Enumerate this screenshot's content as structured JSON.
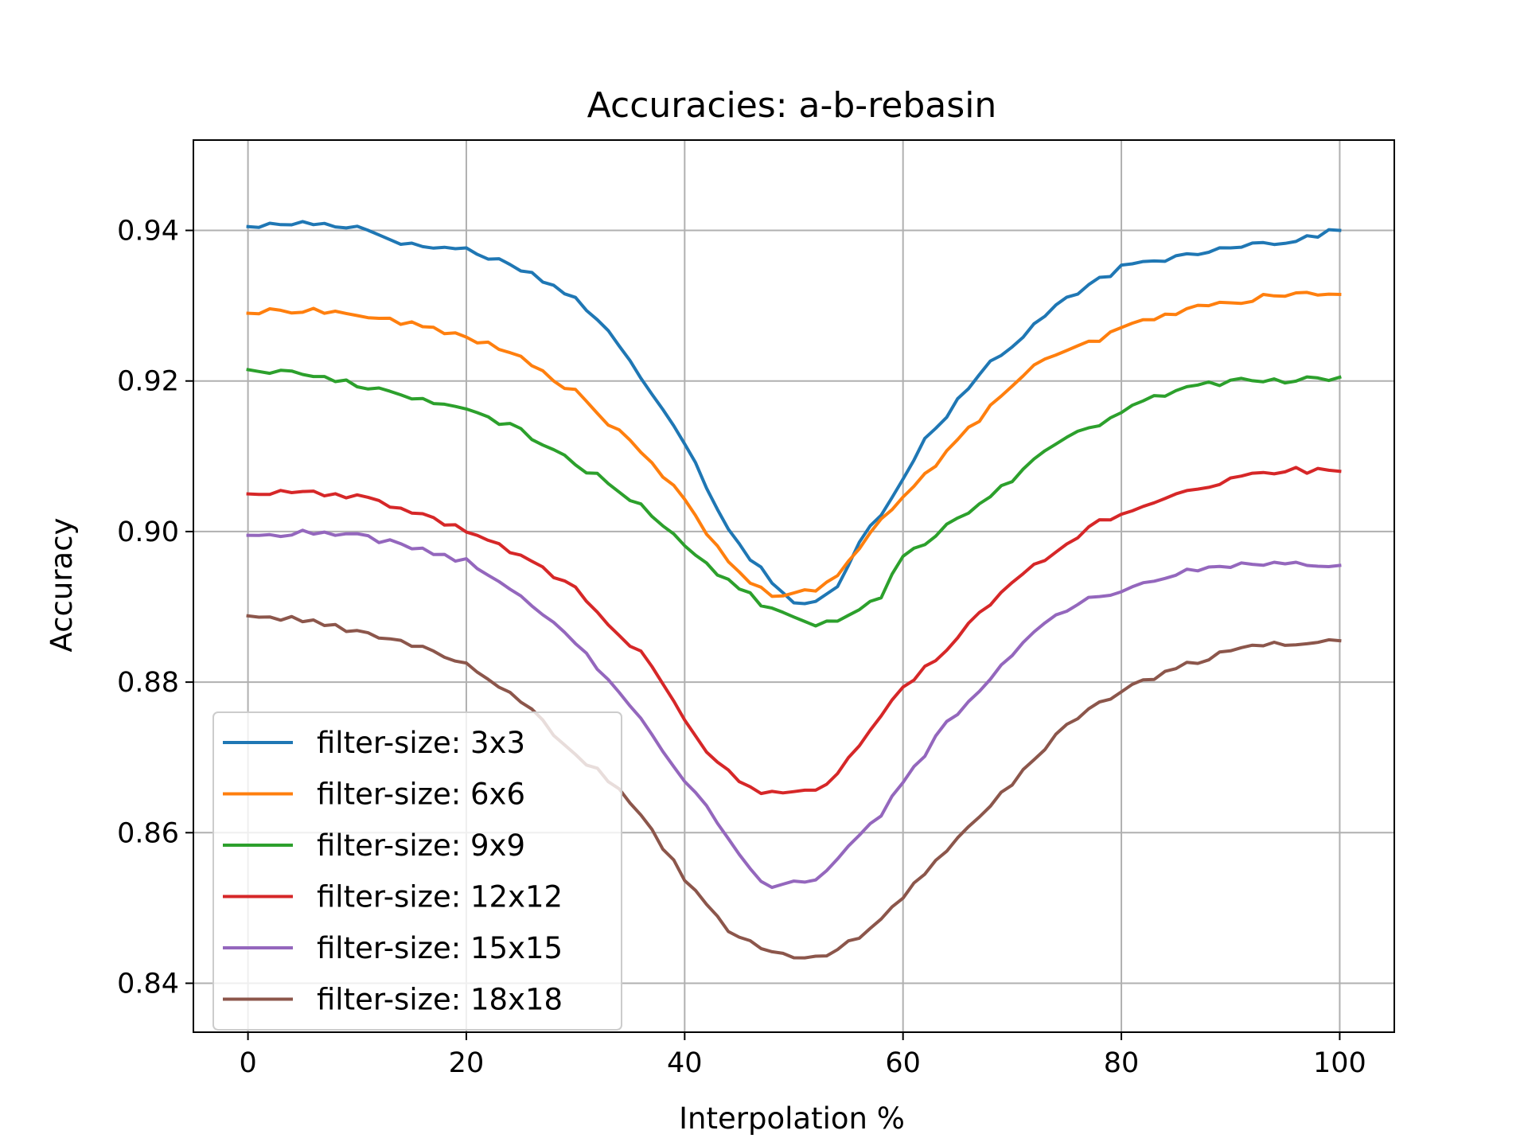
{
  "chart_data": {
    "type": "line",
    "title": "Accuracies: a-b-rebasin",
    "xlabel": "Interpolation %",
    "ylabel": "Accuracy",
    "xlim": [
      -5,
      105
    ],
    "ylim": [
      0.8335,
      0.952
    ],
    "xticks": [
      0,
      20,
      40,
      60,
      80,
      100
    ],
    "xtick_labels": [
      "0",
      "20",
      "40",
      "60",
      "80",
      "100"
    ],
    "yticks": [
      0.84,
      0.86,
      0.88,
      0.9,
      0.92,
      0.94
    ],
    "ytick_labels": [
      "0.84",
      "0.86",
      "0.88",
      "0.90",
      "0.92",
      "0.94"
    ],
    "grid": true,
    "legend_position": "lower-left",
    "anchor_x": [
      0,
      5,
      10,
      15,
      20,
      25,
      30,
      33,
      36,
      38,
      40,
      42,
      44,
      46,
      48,
      50,
      52,
      54,
      56,
      58,
      60,
      62,
      64,
      66,
      68,
      70,
      72,
      74,
      76,
      78,
      80,
      85,
      90,
      95,
      100
    ],
    "series": [
      {
        "name": "filter-size: 3x3",
        "color": "#1f77b4",
        "anchors": [
          0.9405,
          0.941,
          0.9405,
          0.938,
          0.9375,
          0.935,
          0.931,
          0.9265,
          0.9205,
          0.9165,
          0.912,
          0.906,
          0.9005,
          0.8965,
          0.8935,
          0.8905,
          0.8905,
          0.8925,
          0.8985,
          0.9025,
          0.907,
          0.9125,
          0.9155,
          0.919,
          0.9225,
          0.9245,
          0.9275,
          0.93,
          0.9315,
          0.9335,
          0.935,
          0.9365,
          0.938,
          0.9385,
          0.94
        ],
        "noise": 0.0004
      },
      {
        "name": "filter-size: 6x6",
        "color": "#ff7f0e",
        "anchors": [
          0.929,
          0.9295,
          0.9288,
          0.9275,
          0.926,
          0.923,
          0.9185,
          0.9145,
          0.9105,
          0.9075,
          0.904,
          0.9,
          0.896,
          0.8935,
          0.891,
          0.892,
          0.892,
          0.894,
          0.898,
          0.902,
          0.9045,
          0.9075,
          0.9105,
          0.9135,
          0.9165,
          0.9195,
          0.922,
          0.9232,
          0.9245,
          0.9255,
          0.927,
          0.9292,
          0.9305,
          0.9315,
          0.9315
        ],
        "noise": 0.0004
      },
      {
        "name": "filter-size: 9x9",
        "color": "#2ca02c",
        "anchors": [
          0.9215,
          0.921,
          0.9195,
          0.918,
          0.916,
          0.9135,
          0.909,
          0.9065,
          0.9035,
          0.901,
          0.898,
          0.8955,
          0.8935,
          0.8915,
          0.8895,
          0.889,
          0.8875,
          0.888,
          0.8895,
          0.8915,
          0.8965,
          0.8985,
          0.901,
          0.9025,
          0.905,
          0.907,
          0.9095,
          0.912,
          0.913,
          0.914,
          0.916,
          0.9188,
          0.92,
          0.92,
          0.9205
        ],
        "noise": 0.0004
      },
      {
        "name": "filter-size: 12x12",
        "color": "#d62728",
        "anchors": [
          0.905,
          0.9052,
          0.9045,
          0.9028,
          0.9,
          0.8968,
          0.8925,
          0.8875,
          0.8838,
          0.88,
          0.875,
          0.8705,
          0.868,
          0.8658,
          0.8652,
          0.8652,
          0.8658,
          0.8678,
          0.8718,
          0.8758,
          0.879,
          0.882,
          0.8845,
          0.8875,
          0.8905,
          0.893,
          0.8955,
          0.8975,
          0.8995,
          0.9012,
          0.902,
          0.9048,
          0.9068,
          0.9082,
          0.908
        ],
        "noise": 0.0004
      },
      {
        "name": "filter-size: 15x15",
        "color": "#9467bd",
        "anchors": [
          0.8995,
          0.8998,
          0.8995,
          0.898,
          0.896,
          0.8915,
          0.8855,
          0.88,
          0.8755,
          0.871,
          0.867,
          0.8635,
          0.8595,
          0.855,
          0.8525,
          0.8535,
          0.854,
          0.8565,
          0.8595,
          0.8625,
          0.867,
          0.8705,
          0.8745,
          0.8775,
          0.8805,
          0.8835,
          0.8865,
          0.889,
          0.8905,
          0.8915,
          0.892,
          0.8945,
          0.8955,
          0.896,
          0.8955
        ],
        "noise": 0.0004
      },
      {
        "name": "filter-size: 18x18",
        "color": "#8c564b",
        "anchors": [
          0.8888,
          0.8882,
          0.8868,
          0.885,
          0.8825,
          0.8775,
          0.8705,
          0.867,
          0.8625,
          0.858,
          0.854,
          0.8505,
          0.847,
          0.8455,
          0.844,
          0.8435,
          0.8432,
          0.8445,
          0.8462,
          0.8488,
          0.8515,
          0.8545,
          0.8575,
          0.8605,
          0.8635,
          0.8665,
          0.8695,
          0.873,
          0.8752,
          0.8772,
          0.879,
          0.8818,
          0.8842,
          0.8852,
          0.8855
        ],
        "noise": 0.0004
      }
    ]
  }
}
